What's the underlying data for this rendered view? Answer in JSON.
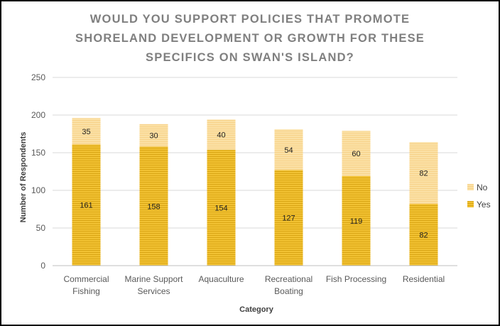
{
  "colors": {
    "yes": "#f2c233",
    "yes_stripe": "#d9a514",
    "no": "#fbe1a6",
    "no_stripe": "#f7d28a",
    "grid": "#d9d9d9",
    "title": "#7f7f7f"
  },
  "chart_data": {
    "type": "bar",
    "stacked": true,
    "title_lines": [
      "WOULD YOU SUPPORT POLICIES THAT PROMOTE",
      "SHORELAND DEVELOPMENT OR GROWTH FOR THESE",
      "SPECIFICS ON SWAN'S ISLAND?"
    ],
    "xlabel": "Category",
    "ylabel": "Number of Respondents",
    "ylim": [
      0,
      250
    ],
    "yticks": [
      0,
      50,
      100,
      150,
      200,
      250
    ],
    "grid": true,
    "legend_position": "right",
    "categories": [
      [
        "Commercial",
        "Fishing"
      ],
      [
        "Marine Support",
        "Services"
      ],
      [
        "Aquaculture"
      ],
      [
        "Recreational",
        "Boating"
      ],
      [
        "Fish Processing"
      ],
      [
        "Residential"
      ]
    ],
    "series": [
      {
        "name": "Yes",
        "values": [
          161,
          158,
          154,
          127,
          119,
          82
        ]
      },
      {
        "name": "No",
        "values": [
          35,
          30,
          40,
          54,
          60,
          82
        ]
      }
    ],
    "legend_order": [
      "No",
      "Yes"
    ]
  }
}
